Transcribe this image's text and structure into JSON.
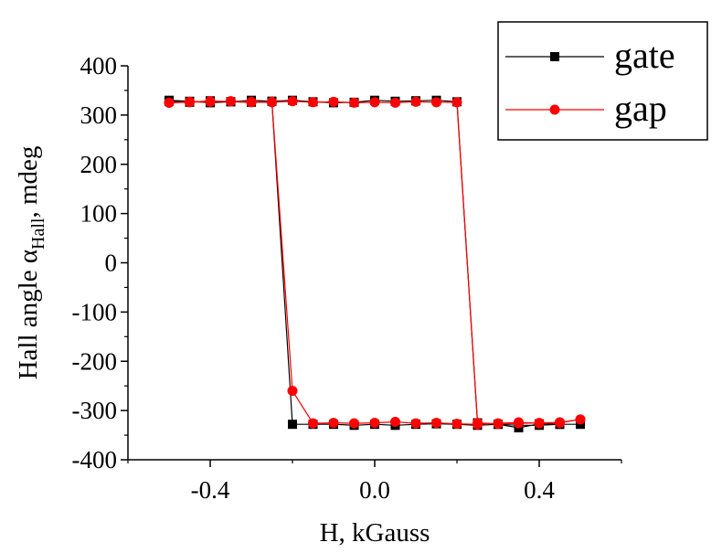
{
  "chart_data": {
    "type": "scatter",
    "title": "",
    "xlabel": "H, kGauss",
    "ylabel": {
      "prefix": "Hall angle α",
      "subscript": "Hall",
      "suffix": ", mdeg"
    },
    "xlim": [
      -0.6,
      0.6
    ],
    "ylim": [
      -400,
      400
    ],
    "xticks": [
      -0.4,
      0.0,
      0.4
    ],
    "xtick_labels": [
      "-0.4",
      "0.0",
      "0.4"
    ],
    "yticks": [
      -400,
      -300,
      -200,
      -100,
      0,
      100,
      200,
      300,
      400
    ],
    "ytick_labels": [
      "-400",
      "-300",
      "-200",
      "-100",
      "0",
      "100",
      "200",
      "300",
      "400"
    ],
    "grid": false,
    "legend_position": "top-right",
    "series": [
      {
        "name": "gate",
        "color": "#000000",
        "marker": "square",
        "x": [
          -0.5,
          -0.45,
          -0.4,
          -0.35,
          -0.3,
          -0.25,
          -0.2,
          -0.15,
          -0.1,
          -0.05,
          0.0,
          0.05,
          0.1,
          0.15,
          0.2,
          0.25,
          0.3,
          0.35,
          0.4,
          0.45,
          0.5,
          0.45,
          0.4,
          0.35,
          0.3,
          0.25,
          0.2,
          0.15,
          0.1,
          0.05,
          0.0,
          -0.05,
          -0.1,
          -0.15,
          -0.2,
          -0.25,
          -0.3,
          -0.35,
          -0.4,
          -0.45,
          -0.5
        ],
        "y": [
          330,
          328,
          325,
          327,
          330,
          328,
          330,
          327,
          325,
          326,
          330,
          328,
          329,
          330,
          327,
          -325,
          -328,
          -330,
          -330,
          -328,
          -328,
          -328,
          -327,
          -335,
          -328,
          -330,
          -328,
          -327,
          -328,
          -330,
          -328,
          -330,
          -328,
          -328,
          -328,
          328,
          326,
          327,
          329,
          326,
          328
        ]
      },
      {
        "name": "gap",
        "color": "#ff0000",
        "marker": "circle",
        "x": [
          -0.5,
          -0.45,
          -0.4,
          -0.35,
          -0.3,
          -0.25,
          -0.2,
          -0.15,
          -0.1,
          -0.05,
          0.0,
          0.05,
          0.1,
          0.15,
          0.2,
          0.25,
          0.3,
          0.35,
          0.4,
          0.45,
          0.5,
          0.45,
          0.4,
          0.35,
          0.3,
          0.25,
          0.2,
          0.15,
          0.1,
          0.05,
          0.0,
          -0.05,
          -0.1,
          -0.15,
          -0.2,
          -0.25,
          -0.3,
          -0.35,
          -0.4,
          -0.45,
          -0.5
        ],
        "y": [
          325,
          326,
          327,
          328,
          327,
          326,
          328,
          326,
          327,
          325,
          326,
          325,
          327,
          326,
          326,
          -325,
          -327,
          -326,
          -325,
          -324,
          -318,
          -325,
          -326,
          -324,
          -326,
          -328,
          -327,
          -325,
          -326,
          -323,
          -325,
          -326,
          -325,
          -326,
          -260,
          327,
          326,
          328,
          328,
          327,
          325
        ]
      }
    ]
  }
}
